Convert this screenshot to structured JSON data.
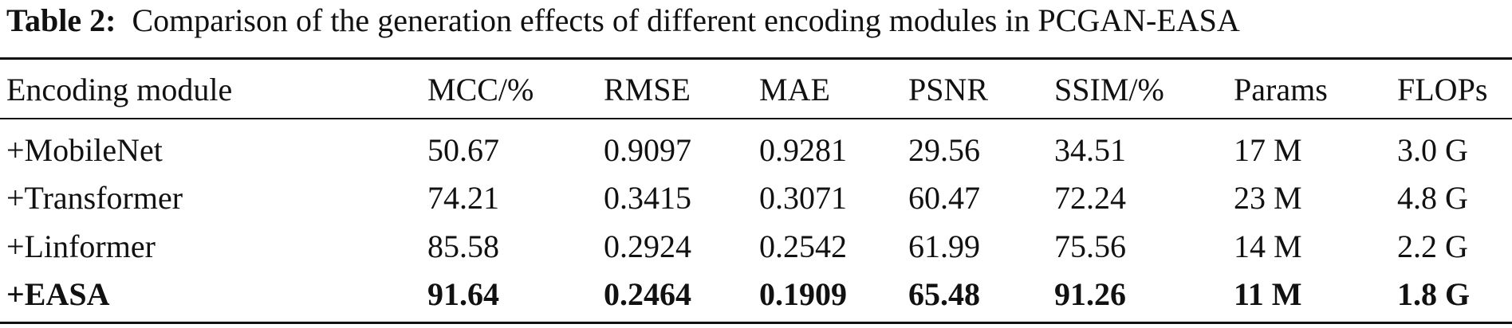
{
  "caption": {
    "label": "Table 2:",
    "text": "Comparison of the generation effects of different encoding modules in PCGAN-EASA"
  },
  "table": {
    "headers": [
      "Encoding module",
      "MCC/%",
      "RMSE",
      "MAE",
      "PSNR",
      "SSIM/%",
      "Params",
      "FLOPs"
    ],
    "rows": [
      [
        "+MobileNet",
        "50.67",
        "0.9097",
        "0.9281",
        "29.56",
        "34.51",
        "17 M",
        "3.0 G"
      ],
      [
        "+Transformer",
        "74.21",
        "0.3415",
        "0.3071",
        "60.47",
        "72.24",
        "23 M",
        "4.8 G"
      ],
      [
        "+Linformer",
        "85.58",
        "0.2924",
        "0.2542",
        "61.99",
        "75.56",
        "14 M",
        "2.2 G"
      ],
      [
        "+EASA",
        "91.64",
        "0.2464",
        "0.1909",
        "65.48",
        "91.26",
        "11 M",
        "1.8 G"
      ]
    ]
  }
}
